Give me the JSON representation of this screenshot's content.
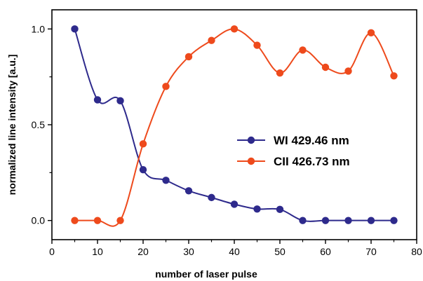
{
  "chart_data": {
    "type": "scatter",
    "xlabel": "number of laser pulse",
    "ylabel": "normalized line intensity [a.u.]",
    "xlim": [
      0,
      80
    ],
    "ylim": [
      -0.1,
      1.1
    ],
    "x_ticks": [
      "0",
      "10",
      "20",
      "30",
      "40",
      "50",
      "60",
      "70",
      "80"
    ],
    "y_ticks": [
      "0.0",
      "0.5",
      "1.0"
    ],
    "legend_position": "center-right",
    "grid": false,
    "series": [
      {
        "name": "WI 429.46 nm",
        "color": "#2e2a8c",
        "x": [
          5,
          10,
          15,
          20,
          25,
          30,
          35,
          40,
          45,
          50,
          55,
          60,
          65,
          70,
          75
        ],
        "y": [
          1.0,
          0.63,
          0.625,
          0.265,
          0.21,
          0.155,
          0.12,
          0.085,
          0.06,
          0.058,
          0.0,
          0.0,
          0.0,
          0.0,
          0.0
        ]
      },
      {
        "name": "CII 426.73 nm",
        "color": "#ee4a1c",
        "x": [
          5,
          10,
          15,
          20,
          25,
          30,
          35,
          40,
          45,
          50,
          55,
          60,
          65,
          70,
          75
        ],
        "y": [
          0.0,
          0.0,
          0.0,
          0.4,
          0.7,
          0.855,
          0.94,
          1.0,
          0.915,
          0.77,
          0.89,
          0.8,
          0.78,
          0.98,
          0.755
        ]
      }
    ]
  }
}
